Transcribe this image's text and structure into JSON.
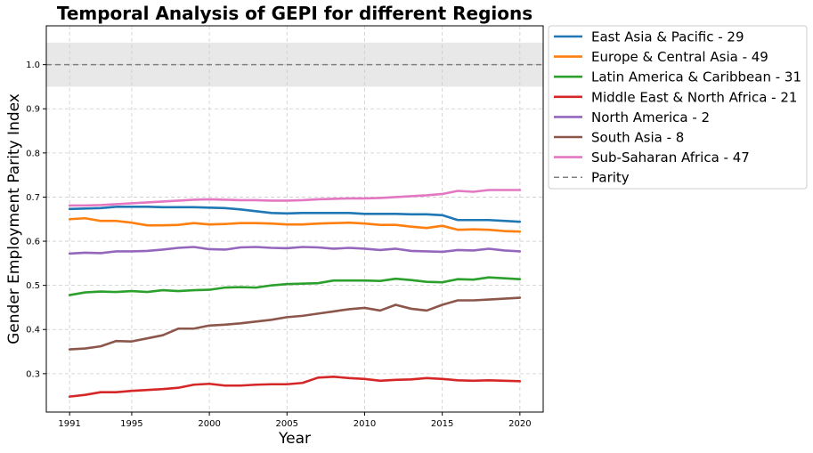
{
  "chart_data": {
    "type": "line",
    "title": "Temporal Analysis of GEPI for different Regions",
    "xlabel": "Year",
    "ylabel": "Gender Employment Parity Index",
    "xlim": [
      1989.5,
      2021.5
    ],
    "ylim": [
      0.213,
      1.088
    ],
    "xticks": [
      1991,
      1995,
      2000,
      2005,
      2010,
      2015,
      2020
    ],
    "yticks": [
      0.3,
      0.4,
      0.5,
      0.6,
      0.7,
      0.8,
      0.9,
      1.0
    ],
    "ytick_labels": [
      "0.3",
      "0.4",
      "0.5",
      "0.6",
      "0.7",
      "0.8",
      "0.9",
      "1.0"
    ],
    "grid": true,
    "legend_position": "outside right",
    "parity_line": 1.0,
    "parity_band": [
      0.95,
      1.05
    ],
    "x": [
      1991,
      1992,
      1993,
      1994,
      1995,
      1996,
      1997,
      1998,
      1999,
      2000,
      2001,
      2002,
      2003,
      2004,
      2005,
      2006,
      2007,
      2008,
      2009,
      2010,
      2011,
      2012,
      2013,
      2014,
      2015,
      2016,
      2017,
      2018,
      2019,
      2020
    ],
    "series": [
      {
        "name": "East Asia & Pacific - 29",
        "color": "#1f77b4",
        "values": [
          0.673,
          0.674,
          0.675,
          0.678,
          0.678,
          0.678,
          0.677,
          0.677,
          0.677,
          0.676,
          0.675,
          0.672,
          0.668,
          0.664,
          0.663,
          0.664,
          0.664,
          0.664,
          0.664,
          0.662,
          0.662,
          0.662,
          0.661,
          0.661,
          0.659,
          0.648,
          0.648,
          0.648,
          0.646,
          0.644
        ]
      },
      {
        "name": "Europe & Central Asia - 49",
        "color": "#ff7f0e",
        "values": [
          0.65,
          0.652,
          0.646,
          0.646,
          0.642,
          0.636,
          0.636,
          0.637,
          0.641,
          0.638,
          0.639,
          0.641,
          0.641,
          0.64,
          0.638,
          0.638,
          0.64,
          0.641,
          0.642,
          0.64,
          0.637,
          0.637,
          0.633,
          0.63,
          0.635,
          0.626,
          0.627,
          0.626,
          0.623,
          0.622
        ]
      },
      {
        "name": "Latin America & Caribbean - 31",
        "color": "#2ca02c",
        "values": [
          0.478,
          0.484,
          0.486,
          0.485,
          0.487,
          0.485,
          0.489,
          0.487,
          0.489,
          0.49,
          0.495,
          0.496,
          0.495,
          0.5,
          0.503,
          0.504,
          0.505,
          0.511,
          0.511,
          0.511,
          0.51,
          0.515,
          0.512,
          0.508,
          0.507,
          0.514,
          0.513,
          0.518,
          0.516,
          0.514
        ]
      },
      {
        "name": "Middle East & North Africa - 21",
        "color": "#d62728",
        "values": [
          0.248,
          0.252,
          0.258,
          0.258,
          0.261,
          0.263,
          0.265,
          0.268,
          0.275,
          0.277,
          0.273,
          0.273,
          0.275,
          0.276,
          0.276,
          0.279,
          0.291,
          0.293,
          0.29,
          0.288,
          0.284,
          0.286,
          0.287,
          0.29,
          0.288,
          0.285,
          0.284,
          0.285,
          0.284,
          0.283
        ]
      },
      {
        "name": "North America - 2",
        "color": "#9467bd",
        "values": [
          0.572,
          0.574,
          0.573,
          0.577,
          0.577,
          0.578,
          0.581,
          0.585,
          0.587,
          0.582,
          0.581,
          0.586,
          0.587,
          0.585,
          0.584,
          0.587,
          0.586,
          0.583,
          0.585,
          0.583,
          0.58,
          0.583,
          0.578,
          0.577,
          0.576,
          0.58,
          0.579,
          0.583,
          0.579,
          0.577
        ]
      },
      {
        "name": "South Asia - 8",
        "color": "#8c564b",
        "values": [
          0.355,
          0.357,
          0.362,
          0.374,
          0.373,
          0.38,
          0.387,
          0.402,
          0.402,
          0.409,
          0.411,
          0.414,
          0.418,
          0.422,
          0.428,
          0.431,
          0.436,
          0.441,
          0.446,
          0.449,
          0.443,
          0.456,
          0.447,
          0.443,
          0.456,
          0.466,
          0.466,
          0.468,
          0.47,
          0.472
        ]
      },
      {
        "name": "Sub-Saharan Africa - 47",
        "color": "#e377c2",
        "values": [
          0.681,
          0.681,
          0.682,
          0.684,
          0.686,
          0.688,
          0.69,
          0.692,
          0.694,
          0.695,
          0.694,
          0.693,
          0.693,
          0.692,
          0.692,
          0.693,
          0.695,
          0.696,
          0.697,
          0.697,
          0.698,
          0.7,
          0.702,
          0.704,
          0.707,
          0.714,
          0.712,
          0.716,
          0.716,
          0.716
        ]
      }
    ],
    "parity_legend_label": "Parity"
  },
  "colors": {
    "grid": "#cccccc",
    "parity": "#808080",
    "band": "#d9d9d9"
  }
}
